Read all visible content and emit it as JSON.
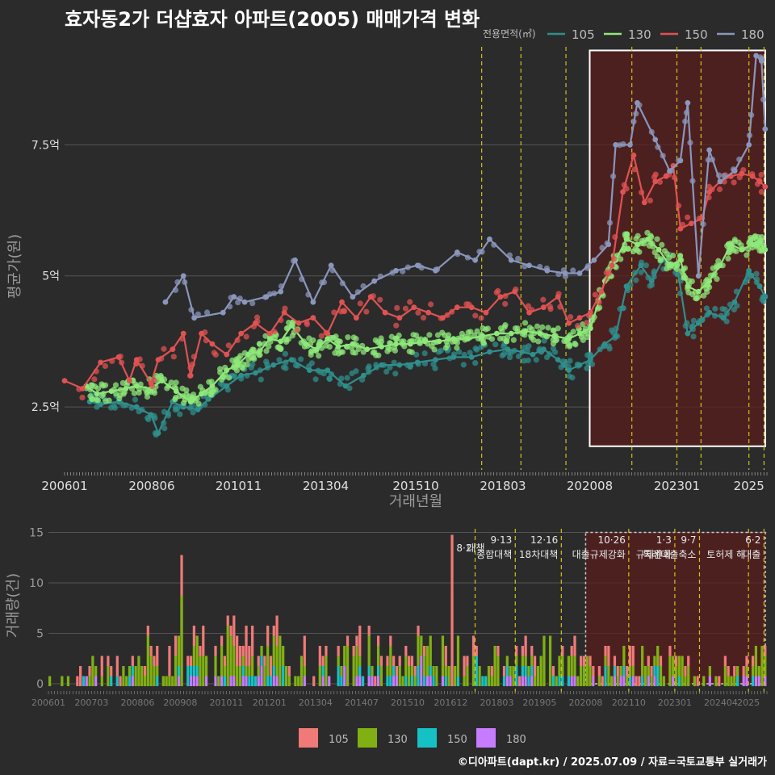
{
  "title": "효자동2가 더샵효자 아파트(2005) 매매가격 변화",
  "footer": "©디아파트(dapt.kr) / 2025.07.09 / 자료=국토교통부 실거래가",
  "colors": {
    "background": "#2b2b2b",
    "grid": "#555555",
    "policy_line": "#d4c21a",
    "highlight_fill": "#5a1d1d",
    "highlight_stroke": "#ffffff"
  },
  "chart_data": [
    {
      "type": "line",
      "ylabel": "평균가(원)",
      "xlabel": "거래년월",
      "legend_title": "전용면적(㎡)",
      "legend_position": "top-right",
      "x_tick_labels": [
        "200601",
        "200806",
        "201011",
        "201304",
        "201510",
        "201803",
        "202008",
        "202301",
        "2025"
      ],
      "x_ticks": [
        2006.0,
        2008.42,
        2010.83,
        2013.25,
        2015.75,
        2018.17,
        2020.58,
        2023.0,
        2025.0
      ],
      "xlim": [
        2006.0,
        2025.5
      ],
      "y_ticks": [
        2.5,
        5,
        7.5
      ],
      "y_tick_labels": [
        "2.5억",
        "5억",
        "7.5억"
      ],
      "ylim": [
        1.3,
        9.8
      ],
      "policy_lines": [
        2017.58,
        2018.67,
        2019.92,
        2021.75,
        2023.0,
        2023.67,
        2025.0,
        2025.42
      ],
      "highlight": {
        "x_start": 2020.58,
        "x_end": 2025.5,
        "y_start": 1.75,
        "y_end": 9.3
      },
      "series": [
        {
          "name": "105",
          "color": "#2f8f8c",
          "points": [
            [
              2006.7,
              2.6
            ],
            [
              2007.0,
              2.55
            ],
            [
              2007.5,
              2.6
            ],
            [
              2008.0,
              2.5
            ],
            [
              2008.4,
              2.35
            ],
            [
              2008.6,
              2.0
            ],
            [
              2009.0,
              2.6
            ],
            [
              2009.3,
              2.5
            ],
            [
              2009.7,
              2.45
            ],
            [
              2010.0,
              2.65
            ],
            [
              2010.5,
              2.9
            ],
            [
              2010.9,
              3.1
            ],
            [
              2011.3,
              3.15
            ],
            [
              2011.8,
              3.3
            ],
            [
              2012.3,
              3.4
            ],
            [
              2012.8,
              3.2
            ],
            [
              2013.3,
              3.2
            ],
            [
              2013.8,
              2.9
            ],
            [
              2014.3,
              3.1
            ],
            [
              2014.8,
              3.3
            ],
            [
              2015.3,
              3.3
            ],
            [
              2015.8,
              3.35
            ],
            [
              2016.3,
              3.4
            ],
            [
              2016.8,
              3.45
            ],
            [
              2017.3,
              3.45
            ],
            [
              2017.8,
              3.55
            ],
            [
              2018.3,
              3.6
            ],
            [
              2018.7,
              3.55
            ],
            [
              2019.0,
              3.5
            ],
            [
              2019.3,
              3.6
            ],
            [
              2019.7,
              3.4
            ],
            [
              2020.0,
              3.2
            ],
            [
              2020.3,
              3.3
            ],
            [
              2020.6,
              3.4
            ],
            [
              2021.0,
              3.7
            ],
            [
              2021.3,
              3.85
            ],
            [
              2021.6,
              4.8
            ],
            [
              2022.0,
              5.2
            ],
            [
              2022.3,
              4.9
            ],
            [
              2022.6,
              5.3
            ],
            [
              2023.0,
              5.2
            ],
            [
              2023.3,
              3.9
            ],
            [
              2023.6,
              4.1
            ],
            [
              2023.9,
              4.3
            ],
            [
              2024.3,
              4.2
            ],
            [
              2024.6,
              4.5
            ],
            [
              2025.0,
              5.1
            ],
            [
              2025.3,
              4.8
            ],
            [
              2025.45,
              4.6
            ]
          ]
        },
        {
          "name": "130",
          "color": "#8ee87a",
          "points": [
            [
              2006.6,
              2.9
            ],
            [
              2006.9,
              2.75
            ],
            [
              2007.3,
              2.8
            ],
            [
              2007.7,
              2.85
            ],
            [
              2008.0,
              2.9
            ],
            [
              2008.4,
              2.85
            ],
            [
              2008.7,
              3.0
            ],
            [
              2009.1,
              2.8
            ],
            [
              2009.5,
              2.6
            ],
            [
              2009.8,
              2.75
            ],
            [
              2010.1,
              2.9
            ],
            [
              2010.5,
              3.2
            ],
            [
              2010.8,
              3.3
            ],
            [
              2011.1,
              3.5
            ],
            [
              2011.4,
              3.55
            ],
            [
              2011.7,
              3.8
            ],
            [
              2012.0,
              3.75
            ],
            [
              2012.3,
              4.05
            ],
            [
              2012.7,
              3.7
            ],
            [
              2013.0,
              3.6
            ],
            [
              2013.3,
              3.8
            ],
            [
              2013.6,
              3.65
            ],
            [
              2014.0,
              3.7
            ],
            [
              2014.4,
              3.6
            ],
            [
              2014.8,
              3.65
            ],
            [
              2015.2,
              3.7
            ],
            [
              2015.6,
              3.7
            ],
            [
              2016.0,
              3.75
            ],
            [
              2016.4,
              3.75
            ],
            [
              2016.8,
              3.8
            ],
            [
              2017.2,
              3.8
            ],
            [
              2017.6,
              3.85
            ],
            [
              2018.0,
              3.9
            ],
            [
              2018.4,
              3.9
            ],
            [
              2018.8,
              3.95
            ],
            [
              2019.2,
              3.9
            ],
            [
              2019.6,
              3.85
            ],
            [
              2020.0,
              3.8
            ],
            [
              2020.3,
              3.9
            ],
            [
              2020.6,
              4.0
            ],
            [
              2021.0,
              4.9
            ],
            [
              2021.3,
              5.3
            ],
            [
              2021.6,
              5.7
            ],
            [
              2021.9,
              5.6
            ],
            [
              2022.2,
              5.7
            ],
            [
              2022.5,
              5.5
            ],
            [
              2022.8,
              5.2
            ],
            [
              2023.1,
              5.3
            ],
            [
              2023.3,
              4.8
            ],
            [
              2023.6,
              4.7
            ],
            [
              2023.9,
              4.9
            ],
            [
              2024.2,
              5.2
            ],
            [
              2024.5,
              5.6
            ],
            [
              2024.8,
              5.5
            ],
            [
              2025.1,
              5.6
            ],
            [
              2025.3,
              5.65
            ],
            [
              2025.45,
              5.5
            ]
          ]
        },
        {
          "name": "150",
          "color": "#e05252",
          "points": [
            [
              2006.0,
              3.0
            ],
            [
              2006.5,
              2.85
            ],
            [
              2007.0,
              3.35
            ],
            [
              2007.5,
              3.45
            ],
            [
              2007.8,
              3.0
            ],
            [
              2008.0,
              3.4
            ],
            [
              2008.4,
              2.95
            ],
            [
              2008.6,
              3.4
            ],
            [
              2009.0,
              3.6
            ],
            [
              2009.3,
              3.9
            ],
            [
              2009.5,
              3.1
            ],
            [
              2009.8,
              3.9
            ],
            [
              2010.1,
              3.7
            ],
            [
              2010.5,
              3.5
            ],
            [
              2010.9,
              3.9
            ],
            [
              2011.3,
              4.1
            ],
            [
              2011.7,
              3.9
            ],
            [
              2012.1,
              4.3
            ],
            [
              2012.5,
              4.1
            ],
            [
              2012.9,
              4.2
            ],
            [
              2013.3,
              3.9
            ],
            [
              2013.7,
              4.5
            ],
            [
              2014.1,
              4.2
            ],
            [
              2014.5,
              4.6
            ],
            [
              2014.9,
              4.3
            ],
            [
              2015.3,
              4.2
            ],
            [
              2015.7,
              4.4
            ],
            [
              2016.1,
              4.3
            ],
            [
              2016.5,
              4.2
            ],
            [
              2016.9,
              4.4
            ],
            [
              2017.3,
              4.4
            ],
            [
              2017.7,
              4.3
            ],
            [
              2018.1,
              4.6
            ],
            [
              2018.5,
              4.7
            ],
            [
              2018.9,
              4.3
            ],
            [
              2019.3,
              4.4
            ],
            [
              2019.7,
              4.6
            ],
            [
              2020.0,
              4.1
            ],
            [
              2020.3,
              4.2
            ],
            [
              2020.6,
              4.3
            ],
            [
              2020.9,
              4.7
            ],
            [
              2021.2,
              5.2
            ],
            [
              2021.5,
              6.6
            ],
            [
              2021.8,
              7.3
            ],
            [
              2022.1,
              6.4
            ],
            [
              2022.4,
              6.8
            ],
            [
              2022.7,
              6.9
            ],
            [
              2022.9,
              7.1
            ],
            [
              2023.1,
              5.9
            ],
            [
              2023.4,
              6.0
            ],
            [
              2023.7,
              6.1
            ],
            [
              2023.9,
              6.6
            ],
            [
              2024.2,
              6.8
            ],
            [
              2024.5,
              6.9
            ],
            [
              2024.8,
              6.95
            ],
            [
              2025.1,
              6.9
            ],
            [
              2025.3,
              6.8
            ],
            [
              2025.45,
              6.7
            ]
          ]
        },
        {
          "name": "180",
          "color": "#8a96bb",
          "points": [
            [
              2008.8,
              4.5
            ],
            [
              2009.3,
              5.0
            ],
            [
              2009.6,
              4.2
            ],
            [
              2010.4,
              4.3
            ],
            [
              2010.7,
              4.6
            ],
            [
              2011.0,
              4.5
            ],
            [
              2011.6,
              4.6
            ],
            [
              2012.0,
              4.7
            ],
            [
              2012.4,
              5.3
            ],
            [
              2012.9,
              4.5
            ],
            [
              2013.4,
              5.2
            ],
            [
              2014.0,
              4.6
            ],
            [
              2014.6,
              4.9
            ],
            [
              2015.2,
              5.1
            ],
            [
              2015.8,
              5.2
            ],
            [
              2016.3,
              5.1
            ],
            [
              2016.9,
              5.45
            ],
            [
              2017.4,
              5.3
            ],
            [
              2017.8,
              5.7
            ],
            [
              2018.4,
              5.3
            ],
            [
              2018.9,
              5.2
            ],
            [
              2019.4,
              5.1
            ],
            [
              2019.9,
              5.05
            ],
            [
              2020.3,
              5.05
            ],
            [
              2020.7,
              5.3
            ],
            [
              2021.1,
              5.6
            ],
            [
              2021.3,
              7.5
            ],
            [
              2021.7,
              7.5
            ],
            [
              2021.9,
              8.3
            ],
            [
              2022.4,
              7.6
            ],
            [
              2022.8,
              7.0
            ],
            [
              2023.1,
              7.2
            ],
            [
              2023.3,
              8.3
            ],
            [
              2023.6,
              5.0
            ],
            [
              2023.9,
              7.4
            ],
            [
              2024.2,
              6.8
            ],
            [
              2024.6,
              7.0
            ],
            [
              2025.0,
              7.5
            ],
            [
              2025.2,
              9.2
            ],
            [
              2025.35,
              9.1
            ],
            [
              2025.45,
              7.8
            ]
          ]
        }
      ]
    },
    {
      "type": "bar",
      "ylabel": "거래량(건)",
      "x_tick_labels": [
        "200601",
        "200703",
        "200806",
        "200908",
        "201011",
        "201201",
        "201304",
        "201407",
        "201510",
        "201612",
        "201803",
        "201905",
        "202008",
        "202110",
        "202301",
        "202404",
        "2025"
      ],
      "x_ticks": [
        2006.0,
        2007.17,
        2008.42,
        2009.58,
        2010.83,
        2012.0,
        2013.25,
        2014.5,
        2015.75,
        2016.92,
        2018.17,
        2019.33,
        2020.58,
        2021.75,
        2023.0,
        2024.25,
        2025.0
      ],
      "xlim": [
        2006.0,
        2025.5
      ],
      "ylim": [
        0,
        16
      ],
      "y_ticks": [
        0,
        5,
        10,
        15
      ],
      "y_tick_labels": [
        "0",
        "5",
        "10",
        "15"
      ],
      "policy_lines": [
        2017.58,
        2018.67,
        2019.92,
        2021.75,
        2023.0,
        2023.67,
        2025.0,
        2025.42
      ],
      "policy_annotations": [
        {
          "x": 2017.58,
          "date": "8·2",
          "label": "대책"
        },
        {
          "x": 2018.67,
          "date": "9·13",
          "label": "종합대책"
        },
        {
          "x": 2019.92,
          "date": "12·16",
          "label": "18차대책"
        },
        {
          "x": 2021.75,
          "date": "10·26",
          "label": "대출규제강화"
        },
        {
          "x": 2023.0,
          "date": "1·3",
          "label": "규제완화"
        },
        {
          "x": 2023.67,
          "date": "9·7",
          "label": "특례대출축소"
        },
        {
          "x": 2025.0,
          "date": "",
          "label": "토허제 해"
        },
        {
          "x": 2025.42,
          "date": "6·2",
          "label": "대출"
        }
      ],
      "highlight": {
        "x_start": 2020.58,
        "x_end": 2025.5
      },
      "legend": [
        {
          "name": "105",
          "color": "#f07a78"
        },
        {
          "name": "130",
          "color": "#80b012"
        },
        {
          "name": "150",
          "color": "#16c1c6"
        },
        {
          "name": "180",
          "color": "#c77cff"
        }
      ],
      "categories_note": "monthly stacked volume",
      "samples": [
        {
          "x": 2006.0,
          "v105": 0,
          "v130": 0,
          "v150": 1,
          "v180": 0
        },
        {
          "x": 2008.9,
          "v105": 2,
          "v130": 5,
          "v150": 1,
          "v180": 0
        },
        {
          "x": 2009.6,
          "v105": 4,
          "v130": 8,
          "v150": 1,
          "v180": 0
        },
        {
          "x": 2010.5,
          "v105": 3,
          "v130": 7,
          "v150": 2,
          "v180": 0
        },
        {
          "x": 2011.6,
          "v105": 2,
          "v130": 6,
          "v150": 1,
          "v180": 1
        },
        {
          "x": 2016.9,
          "v105": 6,
          "v130": 8,
          "v150": 1,
          "v180": 0
        },
        {
          "x": 2020.7,
          "v105": 4,
          "v130": 6,
          "v150": 1,
          "v180": 1
        },
        {
          "x": 2025.42,
          "v105": 1,
          "v130": 3,
          "v150": 1,
          "v180": 0
        }
      ]
    }
  ]
}
